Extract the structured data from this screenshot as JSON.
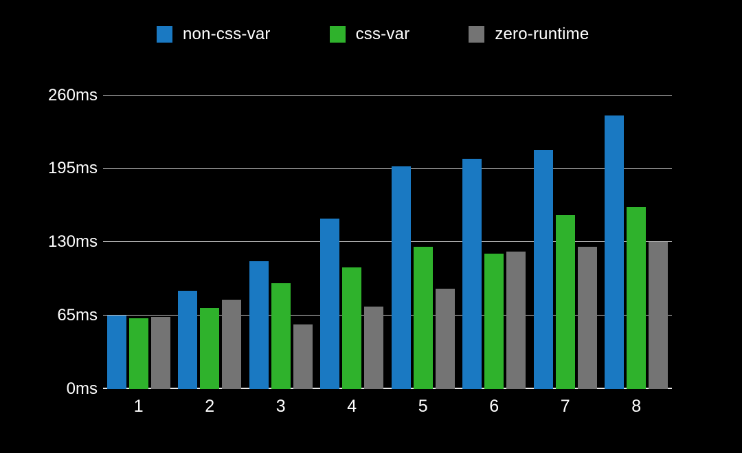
{
  "page": {
    "background": "#000000",
    "text_color": "#ffffff",
    "gridline_color": "#c9c9c9",
    "axis_line_color": "#e9e9e9"
  },
  "chart_data": {
    "type": "bar",
    "title": "",
    "xlabel": "",
    "ylabel": "",
    "unit": "ms",
    "categories": [
      "1",
      "2",
      "3",
      "4",
      "5",
      "6",
      "7",
      "8"
    ],
    "series": [
      {
        "name": "non-css-var",
        "color": "#1a79c2",
        "values": [
          65,
          87,
          113,
          151,
          197,
          204,
          212,
          242
        ]
      },
      {
        "name": "css-var",
        "color": "#2fb22c",
        "values": [
          63,
          72,
          94,
          108,
          126,
          120,
          154,
          161
        ]
      },
      {
        "name": "zero-runtime",
        "color": "#747474",
        "values": [
          64,
          79,
          57,
          73,
          89,
          122,
          126,
          130
        ]
      }
    ],
    "y_ticks": [
      {
        "value": 0,
        "label": "0ms"
      },
      {
        "value": 65,
        "label": "65ms"
      },
      {
        "value": 130,
        "label": "130ms"
      },
      {
        "value": 195,
        "label": "195ms"
      },
      {
        "value": 260,
        "label": "260ms"
      }
    ],
    "ylim": [
      0,
      275
    ],
    "grid": true,
    "legend_position": "top"
  }
}
